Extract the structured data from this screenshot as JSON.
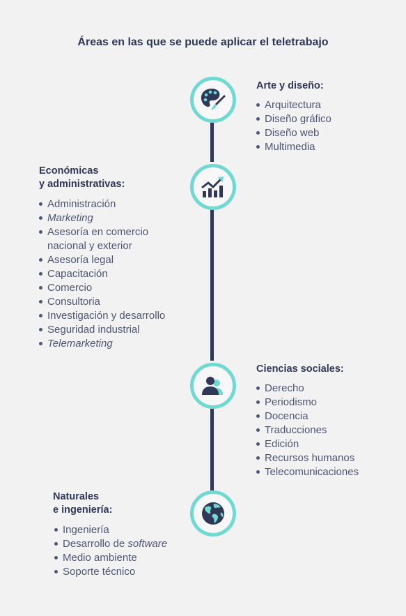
{
  "title": "Áreas en las que se puede aplicar el teletrabajo",
  "sections": [
    {
      "heading": "Arte y diseño:",
      "icon": "palette-brush-icon",
      "items": [
        "Arquitectura",
        "Diseño gráfico",
        "Diseño web",
        "Multimedia"
      ]
    },
    {
      "heading_line1": "Económicas",
      "heading_line2": "y administrativas:",
      "icon": "growth-chart-icon",
      "items": [
        "Administración",
        "Marketing",
        "Asesoría en comercio",
        "nacional y exterior",
        "Asesoría legal",
        "Capacitación",
        "Comercio",
        "Consultoria",
        "Investigación y desarrollo",
        "Seguridad industrial",
        "Telemarketing"
      ]
    },
    {
      "heading": "Ciencias sociales:",
      "icon": "people-icon",
      "items": [
        "Derecho",
        "Periodismo",
        "Docencia",
        "Traducciones",
        "Edición",
        "Recursos humanos",
        "Telecomunicaciones"
      ]
    },
    {
      "heading_line1": "Naturales",
      "heading_line2": "e ingeniería:",
      "icon": "globe-icon",
      "items": [
        "Ingeniería",
        "Desarrollo de ",
        "software",
        "Medio ambiente",
        "Soporte técnico"
      ]
    }
  ],
  "colors": {
    "navy": "#2f3856",
    "teal": "#6fd9d2",
    "background": "#f2f2f2"
  }
}
